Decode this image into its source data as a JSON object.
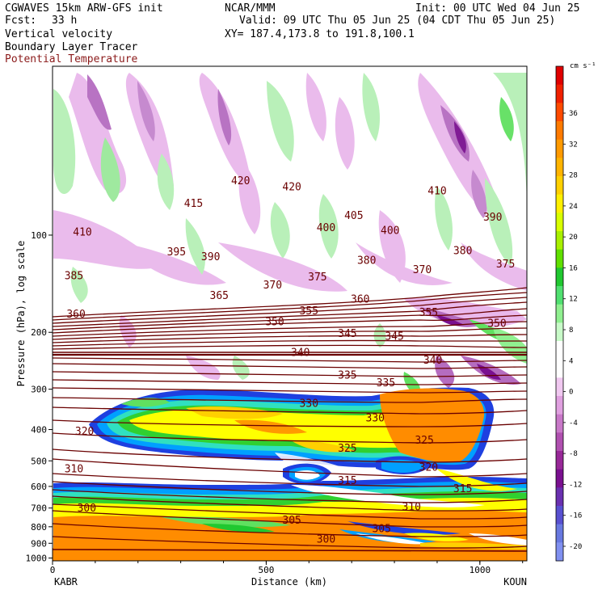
{
  "header": {
    "model": "CGWAVES 15km ARW-GFS init",
    "fcst_label": "Fcst:",
    "fcst_value": "33 h",
    "org": "NCAR/MMM",
    "init": "Init: 00 UTC Wed 04 Jun 25",
    "valid": "Valid: 09 UTC Thu 05 Jun 25 (04 CDT Thu 05 Jun 25)",
    "xy": "XY= 187.4,173.8 to 191.8,100.1",
    "field1": "Vertical velocity",
    "field2": "Boundary Layer Tracer",
    "field3": "Potential Temperature"
  },
  "colors": {
    "theta_contour": "#6a0000",
    "field3_text": "#8b1a1a"
  },
  "chart_data": {
    "type": "heatmap",
    "title": "",
    "xlabel": "Distance (km)",
    "ylabel": "Pressure (hPa), log scale",
    "y_scale": "log",
    "x_range": [
      0,
      1110
    ],
    "y_range": [
      1020,
      30
    ],
    "x_ticks": [
      "0",
      "500",
      "1000"
    ],
    "y_ticks": [
      "100",
      "200",
      "300",
      "400",
      "500",
      "600",
      "700",
      "800",
      "900",
      "1000"
    ],
    "x_endpoints": {
      "left": "KABR",
      "right": "KOUN"
    },
    "colorbar": {
      "unit": "cm s⁻¹",
      "labels": [
        "36",
        "32",
        "28",
        "24",
        "20",
        "16",
        "12",
        "8",
        "4",
        "0",
        "-4",
        "-8",
        "-12",
        "-16",
        "-20"
      ],
      "colors": [
        "#e00000",
        "#f02000",
        "#ff4a00",
        "#ff7a00",
        "#ff9a00",
        "#ffb400",
        "#ffd000",
        "#fff000",
        "#d8ff00",
        "#a8f000",
        "#60e000",
        "#20c830",
        "#50e070",
        "#90f090",
        "#c8fac8",
        "#ffffff",
        "#ffffff",
        "#f0c8f0",
        "#e0a0e0",
        "#c878c8",
        "#b050b0",
        "#982898",
        "#7a1090",
        "#6a30b0",
        "#5850d0",
        "#6878e0",
        "#8090f0"
      ]
    },
    "theta_labels": [
      {
        "text": "420",
        "x": 440,
        "p": 68
      },
      {
        "text": "410",
        "x": 900,
        "p": 73
      },
      {
        "text": "420",
        "x": 560,
        "p": 71
      },
      {
        "text": "415",
        "x": 330,
        "p": 80
      },
      {
        "text": "405",
        "x": 705,
        "p": 87
      },
      {
        "text": "400",
        "x": 640,
        "p": 95
      },
      {
        "text": "400",
        "x": 790,
        "p": 97
      },
      {
        "text": "390",
        "x": 1030,
        "p": 88
      },
      {
        "text": "410",
        "x": 70,
        "p": 98
      },
      {
        "text": "395",
        "x": 290,
        "p": 113
      },
      {
        "text": "390",
        "x": 370,
        "p": 117
      },
      {
        "text": "380",
        "x": 735,
        "p": 120
      },
      {
        "text": "380",
        "x": 960,
        "p": 112
      },
      {
        "text": "375",
        "x": 1060,
        "p": 123
      },
      {
        "text": "370",
        "x": 865,
        "p": 128
      },
      {
        "text": "385",
        "x": 50,
        "p": 134
      },
      {
        "text": "375",
        "x": 620,
        "p": 135
      },
      {
        "text": "370",
        "x": 515,
        "p": 143
      },
      {
        "text": "365",
        "x": 390,
        "p": 154
      },
      {
        "text": "360",
        "x": 720,
        "p": 158
      },
      {
        "text": "355",
        "x": 600,
        "p": 172
      },
      {
        "text": "355",
        "x": 880,
        "p": 174
      },
      {
        "text": "360",
        "x": 55,
        "p": 176
      },
      {
        "text": "350",
        "x": 520,
        "p": 186
      },
      {
        "text": "350",
        "x": 1040,
        "p": 188
      },
      {
        "text": "345",
        "x": 690,
        "p": 202
      },
      {
        "text": "345",
        "x": 800,
        "p": 206
      },
      {
        "text": "340",
        "x": 580,
        "p": 231
      },
      {
        "text": "340",
        "x": 890,
        "p": 244
      },
      {
        "text": "335",
        "x": 690,
        "p": 272
      },
      {
        "text": "335",
        "x": 780,
        "p": 287
      },
      {
        "text": "330",
        "x": 600,
        "p": 333
      },
      {
        "text": "330",
        "x": 755,
        "p": 369
      },
      {
        "text": "320",
        "x": 75,
        "p": 406
      },
      {
        "text": "325",
        "x": 690,
        "p": 458
      },
      {
        "text": "325",
        "x": 870,
        "p": 432
      },
      {
        "text": "320",
        "x": 880,
        "p": 525
      },
      {
        "text": "315",
        "x": 690,
        "p": 577
      },
      {
        "text": "315",
        "x": 960,
        "p": 610
      },
      {
        "text": "310",
        "x": 50,
        "p": 530
      },
      {
        "text": "310",
        "x": 840,
        "p": 695
      },
      {
        "text": "305",
        "x": 560,
        "p": 765
      },
      {
        "text": "305",
        "x": 770,
        "p": 812
      },
      {
        "text": "300",
        "x": 80,
        "p": 702
      },
      {
        "text": "300",
        "x": 640,
        "p": 875
      }
    ]
  }
}
